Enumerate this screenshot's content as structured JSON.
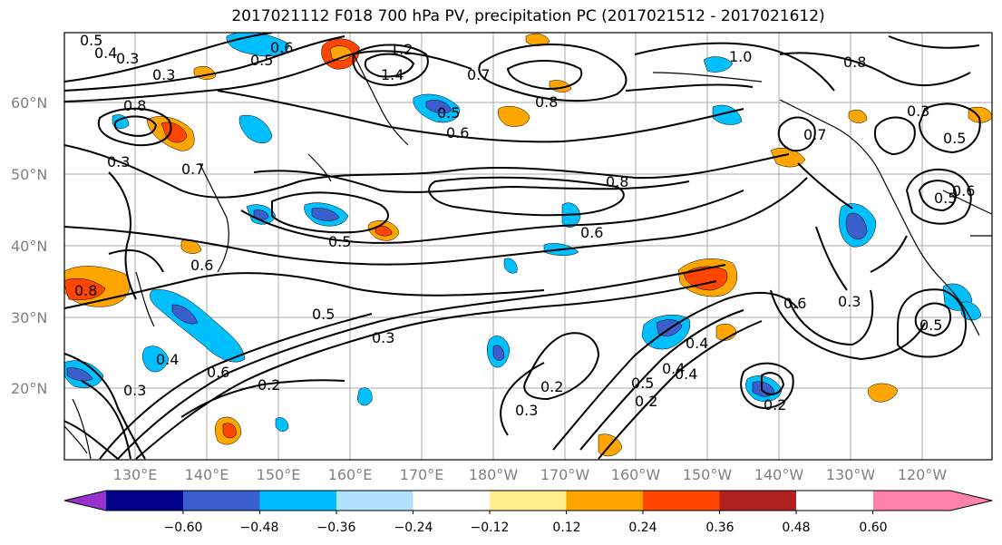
{
  "title": "2017021112 F018 700 hPa PV, precipitation PC (2017021512 - 2017021612)",
  "lat_labels": [
    "60°N",
    "50°N",
    "40°N",
    "30°N",
    "20°N"
  ],
  "lon_labels": [
    "130°E",
    "140°E",
    "150°E",
    "160°E",
    "170°E",
    "180°W",
    "170°W",
    "160°W",
    "150°W",
    "140°W",
    "130°W",
    "120°W"
  ],
  "colorbar": {
    "tick_labels": [
      "−0.60",
      "−0.48",
      "−0.36",
      "−0.24",
      "−0.12",
      "0.12",
      "0.24",
      "0.36",
      "0.48",
      "0.60"
    ],
    "colors": [
      "#9932CC",
      "#00008B",
      "#3A5FCD",
      "#00BFFF",
      "#B0E2FF",
      "#FFFFFF",
      "#FFEC8B",
      "#FFA500",
      "#FF4500",
      "#B22222",
      "#FF82AB"
    ]
  },
  "contour_labels": [
    "0.5",
    "0.4",
    "0.3",
    "0.6",
    "0.5",
    "0.3",
    "1.2",
    "1.4",
    "0.7",
    "0.8",
    "0.5",
    "0.6",
    "1.0",
    "0.8",
    "0.7",
    "0.8",
    "0.6",
    "0.5",
    "0.4",
    "0.7",
    "0.8",
    "0.5",
    "0.6",
    "0.5",
    "0.8",
    "0.3",
    "0.6",
    "0.5",
    "0.4",
    "0.2",
    "0.3",
    "0.2",
    "0.3",
    "0.5",
    "0.4",
    "0.2",
    "0.3",
    "0.6",
    "0.5",
    "0.3",
    "0.6",
    "0.4",
    "0.2",
    "0.3"
  ]
}
